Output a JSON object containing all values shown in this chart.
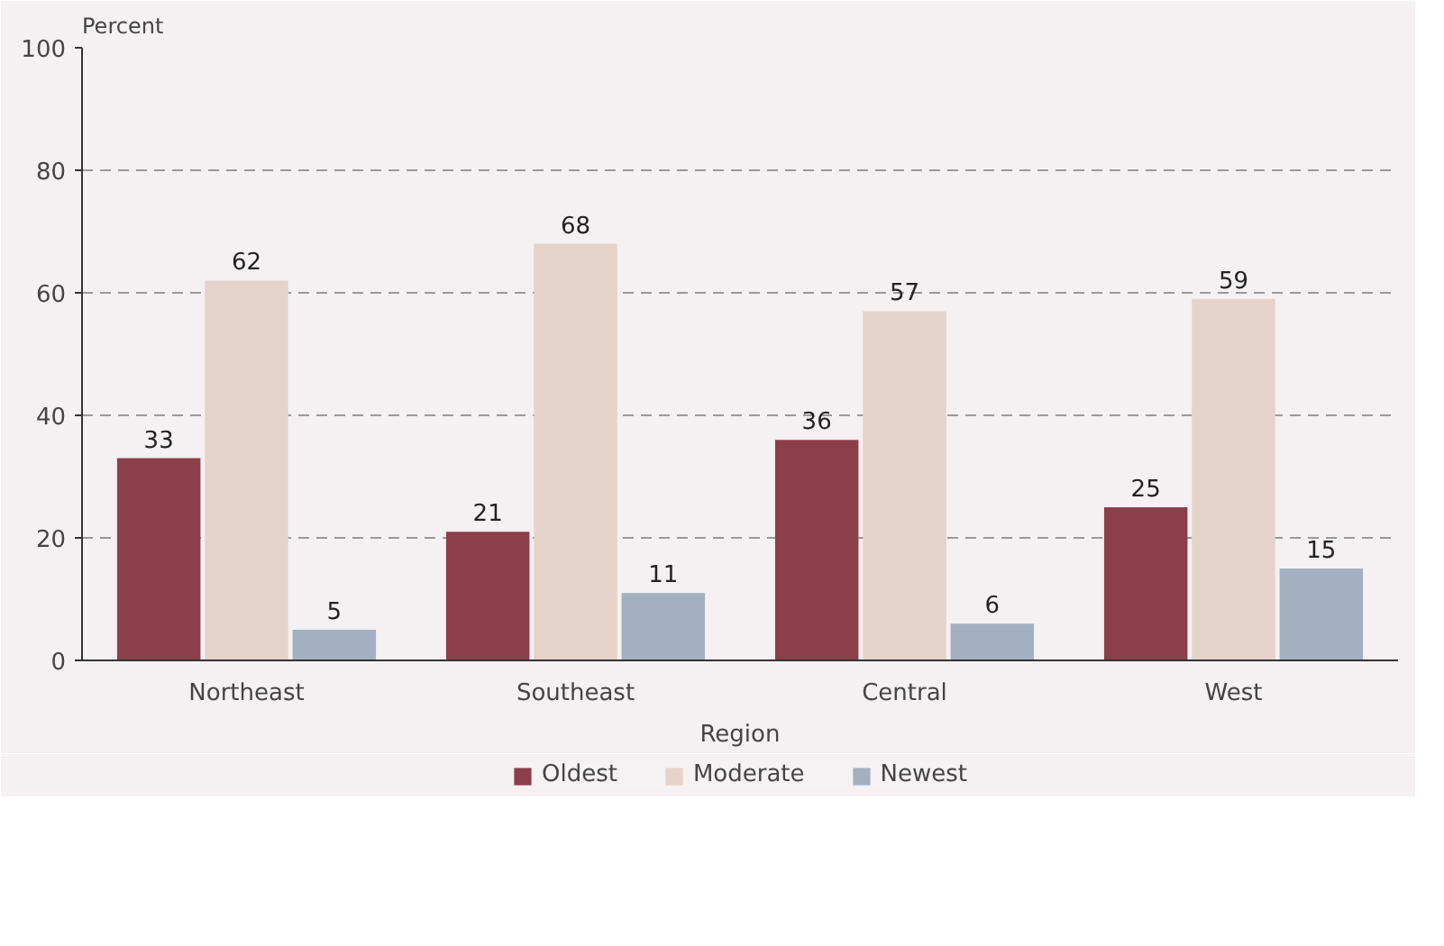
{
  "chart_data": {
    "type": "bar",
    "xlabel": "Region",
    "ylabel": "Percent",
    "categories": [
      "Northeast",
      "Southeast",
      "Central",
      "West"
    ],
    "series": [
      {
        "name": "Oldest",
        "color": "#8b3f4a",
        "values": [
          33,
          21,
          36,
          25
        ]
      },
      {
        "name": "Moderate",
        "color": "#e5d3ca",
        "values": [
          62,
          68,
          57,
          59
        ]
      },
      {
        "name": "Newest",
        "color": "#a3b0c2",
        "values": [
          5,
          11,
          6,
          15
        ]
      }
    ],
    "ylim": [
      0,
      100
    ],
    "yticks": [
      0,
      20,
      40,
      60,
      80,
      100
    ],
    "grid": "y",
    "legend": "bottom",
    "data_labels": true
  }
}
